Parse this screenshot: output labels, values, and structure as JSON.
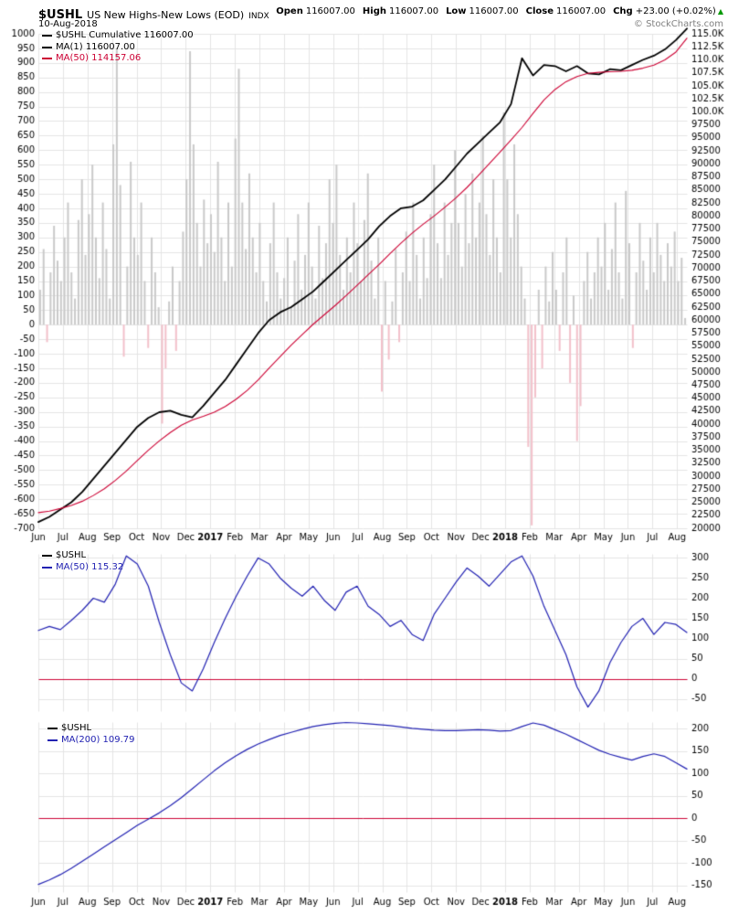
{
  "header": {
    "symbol": "$USHL",
    "name": "US New Highs-New Lows (EOD)",
    "exchange": "INDX",
    "date": "10-Aug-2018",
    "copyright": "© StockCharts.com",
    "quote": {
      "open_label": "Open",
      "open": "116007.00",
      "high_label": "High",
      "high": "116007.00",
      "low_label": "Low",
      "low": "116007.00",
      "close_label": "Close",
      "close": "116007.00",
      "chg_label": "Chg",
      "chg": "+23.00 (+0.02%)",
      "arrow": "▲",
      "arrow_color": "#009900"
    }
  },
  "colors": {
    "grid": "#e4e4e4",
    "red": "#cc0033",
    "blue": "#2222b2",
    "black": "#000000",
    "hist_pos": "#c9c9c9",
    "hist_neg": "#f2c0ca"
  },
  "chart_data": [
    {
      "id": "main",
      "type": "line+bar",
      "title": "$USHL Cumulative",
      "x_months": 26.4,
      "month_labels": [
        "Jun",
        "Jul",
        "Aug",
        "Sep",
        "Oct",
        "Nov",
        "Dec",
        "2017",
        "Feb",
        "Mar",
        "Apr",
        "May",
        "Jun",
        "Jul",
        "Aug",
        "Sep",
        "Oct",
        "Nov",
        "Dec",
        "2018",
        "Feb",
        "Mar",
        "Apr",
        "May",
        "Jun",
        "Jul",
        "Aug"
      ],
      "left_axis": {
        "tick_max": 1000,
        "tick_step": 50,
        "ticks": [
          "1000",
          "950",
          "900",
          "850",
          "800",
          "750",
          "700",
          "650",
          "600",
          "550",
          "500",
          "450",
          "400",
          "350",
          "300",
          "250",
          "200",
          "150",
          "100",
          "50",
          "0",
          "-50",
          "-100",
          "-150",
          "-200",
          "-250",
          "-300",
          "-350",
          "-400",
          "-450",
          "-500",
          "-550",
          "-600",
          "-650",
          "-700"
        ]
      },
      "right_axis": {
        "tick_max": 115000,
        "tick_step": 2500,
        "ticks": [
          "115.0K",
          "112.5K",
          "110.0K",
          "107.5K",
          "105.0K",
          "102.5K",
          "100.0K",
          "97500",
          "95000",
          "92500",
          "90000",
          "87500",
          "85000",
          "82500",
          "80000",
          "77500",
          "75000",
          "72500",
          "70000",
          "67500",
          "65000",
          "62500",
          "60000",
          "57500",
          "55000",
          "52500",
          "50000",
          "47500",
          "45000",
          "42500",
          "40000",
          "37500",
          "35000",
          "32500",
          "30000",
          "27500",
          "25000",
          "22500",
          "20000"
        ]
      },
      "scales": {
        "left": {
          "min": -700,
          "max": 1000
        },
        "right": {
          "min": 20000,
          "max": 115000
        }
      },
      "grid": {
        "scale": "left",
        "max": 1000,
        "min": -700,
        "step": 50
      },
      "histogram": {
        "scale": "left",
        "pos_color": "#c9c9c9",
        "neg_color": "#f2c0ca",
        "values": [
          120,
          260,
          -60,
          180,
          340,
          220,
          150,
          300,
          420,
          180,
          90,
          360,
          500,
          240,
          380,
          550,
          300,
          160,
          420,
          260,
          90,
          620,
          950,
          480,
          -110,
          200,
          560,
          300,
          240,
          420,
          150,
          -80,
          300,
          180,
          60,
          -340,
          -150,
          80,
          200,
          -90,
          150,
          320,
          500,
          940,
          620,
          350,
          200,
          430,
          280,
          380,
          250,
          560,
          300,
          150,
          420,
          200,
          640,
          880,
          420,
          260,
          520,
          300,
          180,
          350,
          150,
          80,
          280,
          420,
          180,
          90,
          160,
          300,
          60,
          220,
          380,
          120,
          240,
          420,
          200,
          90,
          340,
          160,
          280,
          500,
          350,
          550,
          240,
          120,
          300,
          180,
          420,
          280,
          150,
          360,
          520,
          220,
          90,
          300,
          -230,
          150,
          -120,
          80,
          260,
          -60,
          180,
          320,
          150,
          420,
          240,
          90,
          300,
          160,
          380,
          550,
          280,
          160,
          420,
          240,
          350,
          600,
          350,
          200,
          450,
          280,
          520,
          300,
          420,
          650,
          380,
          240,
          500,
          300,
          180,
          730,
          500,
          300,
          620,
          380,
          200,
          90,
          -420,
          -690,
          -250,
          120,
          -150,
          200,
          80,
          250,
          120,
          -90,
          180,
          300,
          -200,
          100,
          -400,
          -280,
          150,
          250,
          90,
          180,
          300,
          200,
          350,
          120,
          260,
          420,
          180,
          90,
          460,
          280,
          -80,
          180,
          350,
          220,
          120,
          300,
          180,
          350,
          240,
          150,
          280,
          200,
          320,
          150,
          230,
          23
        ]
      },
      "series": [
        {
          "name": "$USHL Cumulative MA(1)",
          "color": "#000000",
          "width": 1.8,
          "scale": "right",
          "values": [
            21200,
            22200,
            23600,
            25000,
            27000,
            29500,
            32000,
            34500,
            37000,
            39500,
            41200,
            42300,
            42600,
            41800,
            41300,
            43500,
            46000,
            48500,
            51500,
            54500,
            57500,
            60000,
            61500,
            62500,
            64000,
            65500,
            67500,
            69500,
            71500,
            73500,
            75500,
            78000,
            80000,
            81500,
            81800,
            83000,
            85000,
            87000,
            89500,
            92000,
            94000,
            96000,
            98000,
            101500,
            110300,
            107000,
            109000,
            108800,
            107800,
            108800,
            107400,
            107200,
            108200,
            108000,
            109000,
            110000,
            110800,
            112000,
            113800,
            116007
          ]
        },
        {
          "name": "MA(50)",
          "color": "#cc0033",
          "width": 1.1,
          "scale": "right",
          "values": [
            23000,
            23300,
            23800,
            24400,
            25200,
            26300,
            27600,
            29200,
            31000,
            33000,
            35000,
            36800,
            38400,
            39800,
            40800,
            41500,
            42300,
            43400,
            44800,
            46500,
            48500,
            50800,
            53000,
            55200,
            57200,
            59200,
            61000,
            62800,
            64700,
            66700,
            68700,
            70700,
            72800,
            74800,
            76700,
            78400,
            80000,
            81700,
            83500,
            85500,
            87700,
            90000,
            92300,
            94600,
            97000,
            99700,
            102300,
            104300,
            105800,
            106800,
            107400,
            107600,
            107700,
            107800,
            108000,
            108400,
            109000,
            110000,
            111500,
            114157
          ]
        }
      ],
      "legend": [
        {
          "label": "$USHL Cumulative 116007.00",
          "color": "#000000"
        },
        {
          "label": "MA(1) 116007.00",
          "color": "#000000"
        },
        {
          "label": "MA(50) 114157.06",
          "color": "#cc0033"
        }
      ]
    },
    {
      "id": "mid",
      "type": "line",
      "x_months": 26.4,
      "right_axis": {
        "tick_max": 300,
        "tick_step": 50,
        "ticks": [
          "300",
          "250",
          "200",
          "150",
          "100",
          "50",
          "0",
          "-50"
        ]
      },
      "scales": {
        "right": {
          "min": -80,
          "max": 310
        }
      },
      "grid": {
        "scale": "right",
        "max": 300,
        "min": -50,
        "step": 50
      },
      "zero_line": {
        "value": 0,
        "color": "#cc0033"
      },
      "series": [
        {
          "name": "MA(50)",
          "color": "#2222b2",
          "width": 1.2,
          "scale": "right",
          "values": [
            120,
            130,
            122,
            145,
            170,
            200,
            190,
            235,
            305,
            285,
            230,
            140,
            60,
            -10,
            -30,
            25,
            90,
            150,
            205,
            255,
            300,
            285,
            250,
            225,
            205,
            230,
            195,
            170,
            215,
            230,
            180,
            160,
            130,
            145,
            110,
            95,
            160,
            200,
            240,
            275,
            255,
            230,
            260,
            290,
            305,
            255,
            180,
            120,
            60,
            -20,
            -70,
            -30,
            40,
            90,
            130,
            150,
            110,
            140,
            135,
            115
          ]
        }
      ],
      "legend": [
        {
          "label": "$USHL",
          "color": "#000000"
        },
        {
          "label": "MA(50) 115.32",
          "color": "#2222b2"
        }
      ]
    },
    {
      "id": "bottom",
      "type": "line",
      "x_months": 26.4,
      "month_labels": [
        "Jun",
        "Jul",
        "Aug",
        "Sep",
        "Oct",
        "Nov",
        "Dec",
        "2017",
        "Feb",
        "Mar",
        "Apr",
        "May",
        "Jun",
        "Jul",
        "Aug",
        "Sep",
        "Oct",
        "Nov",
        "Dec",
        "2018",
        "Feb",
        "Mar",
        "Apr",
        "May",
        "Jun",
        "Jul",
        "Aug"
      ],
      "right_axis": {
        "tick_max": 200,
        "tick_step": 50,
        "ticks": [
          "200",
          "150",
          "100",
          "50",
          "0",
          "-50",
          "-100",
          "-150"
        ]
      },
      "scales": {
        "right": {
          "min": -165,
          "max": 215
        }
      },
      "grid": {
        "scale": "right",
        "max": 200,
        "min": -150,
        "step": 50
      },
      "zero_line": {
        "value": 0,
        "color": "#cc0033"
      },
      "series": [
        {
          "name": "MA(200)",
          "color": "#2222b2",
          "width": 1.2,
          "scale": "right",
          "values": [
            -148,
            -138,
            -126,
            -112,
            -96,
            -80,
            -64,
            -48,
            -32,
            -16,
            -2,
            12,
            28,
            46,
            66,
            86,
            106,
            124,
            140,
            154,
            166,
            176,
            185,
            192,
            199,
            205,
            209,
            212,
            214,
            213,
            211,
            209,
            207,
            204,
            201,
            199,
            197,
            196,
            196,
            197,
            198,
            197,
            195,
            196,
            205,
            213,
            208,
            198,
            188,
            176,
            164,
            152,
            143,
            136,
            130,
            138,
            144,
            138,
            124,
            110
          ]
        }
      ],
      "legend": [
        {
          "label": "$USHL",
          "color": "#000000"
        },
        {
          "label": "MA(200) 109.79",
          "color": "#2222b2"
        }
      ]
    }
  ]
}
